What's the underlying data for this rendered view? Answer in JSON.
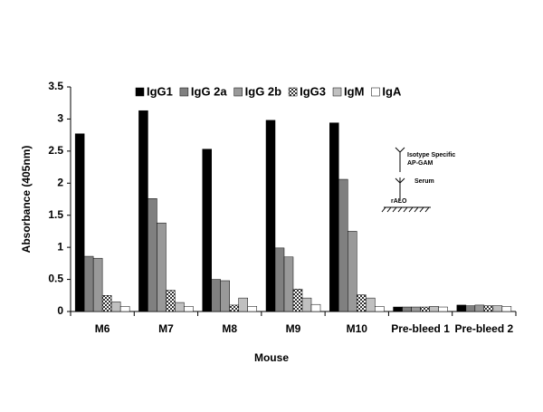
{
  "chart_data": {
    "type": "bar",
    "ylabel": "Absorbance (405nm)",
    "xlabel": "Mouse",
    "categories": [
      "M6",
      "M7",
      "M8",
      "M9",
      "M10",
      "Pre-bleed 1",
      "Pre-bleed 2"
    ],
    "series": [
      {
        "name": "IgG1",
        "color": "#000000",
        "values": [
          2.77,
          3.13,
          2.53,
          2.98,
          2.94,
          0.07,
          0.1
        ]
      },
      {
        "name": "IgG 2a",
        "color": "#808080",
        "values": [
          0.86,
          1.76,
          0.5,
          0.99,
          2.06,
          0.07,
          0.09
        ]
      },
      {
        "name": "IgG 2b",
        "color": "#999999",
        "values": [
          0.83,
          1.38,
          0.48,
          0.85,
          1.25,
          0.07,
          0.1
        ]
      },
      {
        "name": "IgG3",
        "color": "#333333",
        "pattern": "checker",
        "values": [
          0.25,
          0.33,
          0.1,
          0.35,
          0.26,
          0.07,
          0.09
        ]
      },
      {
        "name": "IgM",
        "color": "#c0c0c0",
        "values": [
          0.15,
          0.14,
          0.21,
          0.21,
          0.21,
          0.08,
          0.09
        ]
      },
      {
        "name": "IgA",
        "color": "#ffffff",
        "values": [
          0.08,
          0.08,
          0.08,
          0.11,
          0.08,
          0.07,
          0.08
        ]
      }
    ],
    "ylim": [
      0,
      3.5
    ],
    "yticks": [
      0,
      0.5,
      1,
      1.5,
      2,
      2.5,
      3,
      3.5
    ],
    "legend": "top",
    "annotations": [
      "Isotype Specific",
      "AP-GAM",
      "Serum",
      "rALO"
    ]
  }
}
